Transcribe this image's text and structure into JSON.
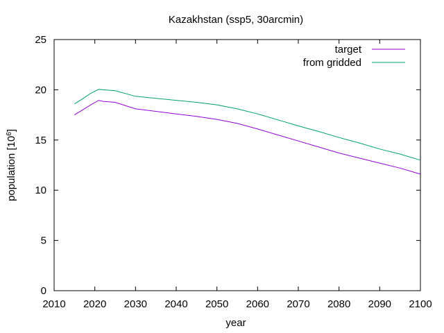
{
  "chart_data": {
    "type": "line",
    "title": "Kazakhstan (ssp5, 30arcmin)",
    "xlabel": "year",
    "ylabel_base": "population [10",
    "ylabel_exp": "6",
    "ylabel_close": "]",
    "xlim": [
      2010,
      2100
    ],
    "ylim": [
      0,
      25
    ],
    "xticks": [
      2010,
      2020,
      2030,
      2040,
      2050,
      2060,
      2070,
      2080,
      2090,
      2100
    ],
    "yticks": [
      0,
      5,
      10,
      15,
      20,
      25
    ],
    "grid": false,
    "legend_position": "top-right",
    "series": [
      {
        "name": "target",
        "color": "#9400d3",
        "x": [
          2015,
          2017,
          2019,
          2021,
          2022,
          2025,
          2030,
          2035,
          2040,
          2045,
          2050,
          2055,
          2060,
          2065,
          2070,
          2075,
          2080,
          2085,
          2090,
          2095,
          2100
        ],
        "y": [
          17.5,
          18.0,
          18.5,
          18.95,
          18.85,
          18.75,
          18.1,
          17.85,
          17.6,
          17.35,
          17.05,
          16.65,
          16.1,
          15.5,
          14.9,
          14.3,
          13.7,
          13.2,
          12.7,
          12.2,
          11.6
        ]
      },
      {
        "name": "from gridded",
        "color": "#009e73",
        "x": [
          2015,
          2017,
          2019,
          2021,
          2022,
          2025,
          2030,
          2035,
          2040,
          2045,
          2050,
          2055,
          2060,
          2065,
          2070,
          2075,
          2080,
          2085,
          2090,
          2095,
          2100
        ],
        "y": [
          18.6,
          19.1,
          19.65,
          20.05,
          20.0,
          19.9,
          19.35,
          19.15,
          18.95,
          18.75,
          18.5,
          18.1,
          17.6,
          17.0,
          16.4,
          15.85,
          15.25,
          14.7,
          14.1,
          13.6,
          13.0
        ]
      }
    ]
  }
}
